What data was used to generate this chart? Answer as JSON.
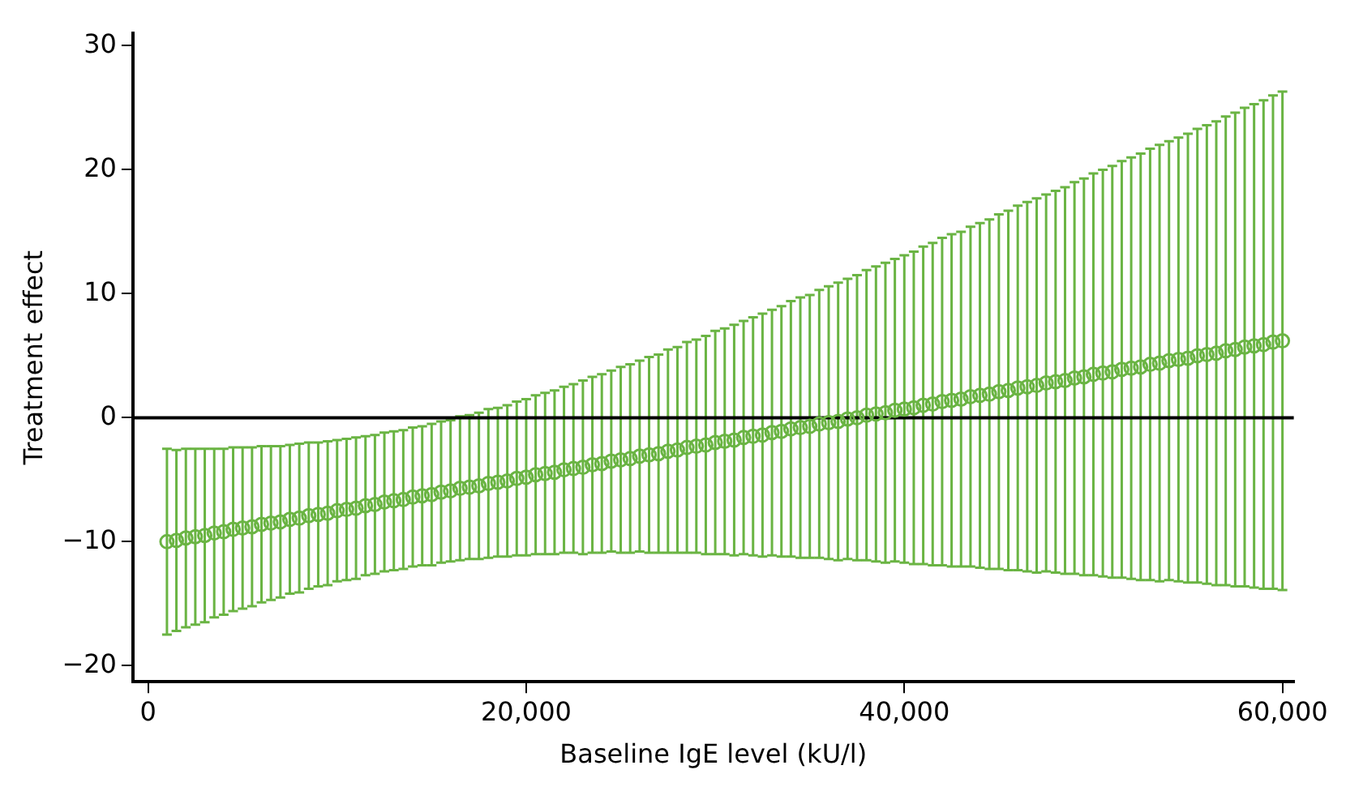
{
  "chart_data": {
    "type": "scatter",
    "xlabel": "Baseline IgE level (kU/l)",
    "ylabel": "Treatment effect",
    "marker": "circle",
    "grid": false,
    "legend": false,
    "x": [
      1000,
      1500,
      2000,
      2500,
      3000,
      3500,
      4000,
      4500,
      5000,
      5500,
      6000,
      6500,
      7000,
      7500,
      8000,
      8500,
      9000,
      9500,
      10000,
      10500,
      11000,
      11500,
      12000,
      12500,
      13000,
      13500,
      14000,
      14500,
      15000,
      15500,
      16000,
      16500,
      17000,
      17500,
      18000,
      18500,
      19000,
      19500,
      20000,
      20500,
      21000,
      21500,
      22000,
      22500,
      23000,
      23500,
      24000,
      24500,
      25000,
      25500,
      26000,
      26500,
      27000,
      27500,
      28000,
      28500,
      29000,
      29500,
      30000,
      30500,
      31000,
      31500,
      32000,
      32500,
      33000,
      33500,
      34000,
      34500,
      35000,
      35500,
      36000,
      36500,
      37000,
      37500,
      38000,
      38500,
      39000,
      39500,
      40000,
      40500,
      41000,
      41500,
      42000,
      42500,
      43000,
      43500,
      44000,
      44500,
      45000,
      45500,
      46000,
      46500,
      47000,
      47500,
      48000,
      48500,
      49000,
      49500,
      50000,
      50500,
      51000,
      51500,
      52000,
      52500,
      53000,
      53500,
      54000,
      54500,
      55000,
      55500,
      56000,
      56500,
      57000,
      57500,
      58000,
      58500,
      59000,
      59500,
      60000
    ],
    "series": [
      {
        "color": "#6ab443",
        "values": [
          -10.0,
          -9.9,
          -9.7,
          -9.6,
          -9.5,
          -9.3,
          -9.2,
          -9.0,
          -8.9,
          -8.8,
          -8.6,
          -8.5,
          -8.4,
          -8.2,
          -8.1,
          -7.9,
          -7.8,
          -7.7,
          -7.5,
          -7.4,
          -7.3,
          -7.1,
          -7.0,
          -6.8,
          -6.7,
          -6.6,
          -6.4,
          -6.3,
          -6.2,
          -6.0,
          -5.9,
          -5.7,
          -5.6,
          -5.5,
          -5.3,
          -5.2,
          -5.1,
          -4.9,
          -4.8,
          -4.6,
          -4.5,
          -4.4,
          -4.2,
          -4.1,
          -4.0,
          -3.8,
          -3.7,
          -3.5,
          -3.4,
          -3.3,
          -3.1,
          -3.0,
          -2.9,
          -2.7,
          -2.6,
          -2.4,
          -2.3,
          -2.2,
          -2.0,
          -1.9,
          -1.8,
          -1.6,
          -1.5,
          -1.4,
          -1.2,
          -1.1,
          -0.9,
          -0.8,
          -0.7,
          -0.5,
          -0.4,
          -0.3,
          -0.1,
          0.0,
          0.2,
          0.3,
          0.4,
          0.6,
          0.7,
          0.8,
          1.0,
          1.1,
          1.3,
          1.4,
          1.5,
          1.7,
          1.8,
          1.9,
          2.1,
          2.2,
          2.4,
          2.5,
          2.6,
          2.8,
          2.9,
          3.0,
          3.2,
          3.3,
          3.5,
          3.6,
          3.7,
          3.9,
          4.0,
          4.1,
          4.3,
          4.4,
          4.6,
          4.7,
          4.8,
          5.0,
          5.1,
          5.2,
          5.4,
          5.5,
          5.7,
          5.8,
          5.9,
          6.1,
          6.2
        ],
        "errors": [
          7.5,
          7.3,
          7.2,
          7.1,
          7.0,
          6.8,
          6.7,
          6.6,
          6.5,
          6.4,
          6.3,
          6.2,
          6.1,
          6.0,
          6.0,
          5.9,
          5.8,
          5.8,
          5.7,
          5.7,
          5.7,
          5.6,
          5.6,
          5.6,
          5.6,
          5.6,
          5.6,
          5.6,
          5.7,
          5.7,
          5.7,
          5.8,
          5.8,
          5.9,
          6.0,
          6.0,
          6.1,
          6.2,
          6.3,
          6.4,
          6.5,
          6.6,
          6.7,
          6.8,
          7.0,
          7.1,
          7.2,
          7.3,
          7.5,
          7.6,
          7.7,
          7.9,
          8.0,
          8.2,
          8.3,
          8.5,
          8.6,
          8.8,
          9.0,
          9.1,
          9.3,
          9.4,
          9.6,
          9.8,
          9.9,
          10.1,
          10.3,
          10.5,
          10.6,
          10.8,
          11.0,
          11.2,
          11.3,
          11.5,
          11.7,
          11.9,
          12.1,
          12.2,
          12.4,
          12.6,
          12.8,
          13.0,
          13.2,
          13.4,
          13.5,
          13.7,
          13.9,
          14.1,
          14.3,
          14.5,
          14.7,
          14.9,
          15.1,
          15.2,
          15.4,
          15.6,
          15.8,
          16.0,
          16.2,
          16.4,
          16.6,
          16.8,
          17.0,
          17.2,
          17.4,
          17.6,
          17.7,
          17.9,
          18.1,
          18.3,
          18.5,
          18.7,
          18.9,
          19.1,
          19.3,
          19.5,
          19.7,
          19.9,
          20.1
        ]
      }
    ],
    "xlim": [
      -800,
      60600
    ],
    "ylim": [
      -21.3,
      31
    ],
    "xticks": [
      0,
      {
        "value": 20000,
        "label": "20,000"
      },
      {
        "value": 40000,
        "label": "40,000"
      },
      {
        "value": 60000,
        "label": "60,000"
      }
    ],
    "yticks": [
      {
        "value": -20,
        "label": "−20"
      },
      {
        "value": -10,
        "label": "−10"
      },
      0,
      10,
      20,
      30
    ],
    "ref_lines": [
      {
        "axis": "y",
        "value": 0,
        "color": "#000000"
      }
    ]
  }
}
